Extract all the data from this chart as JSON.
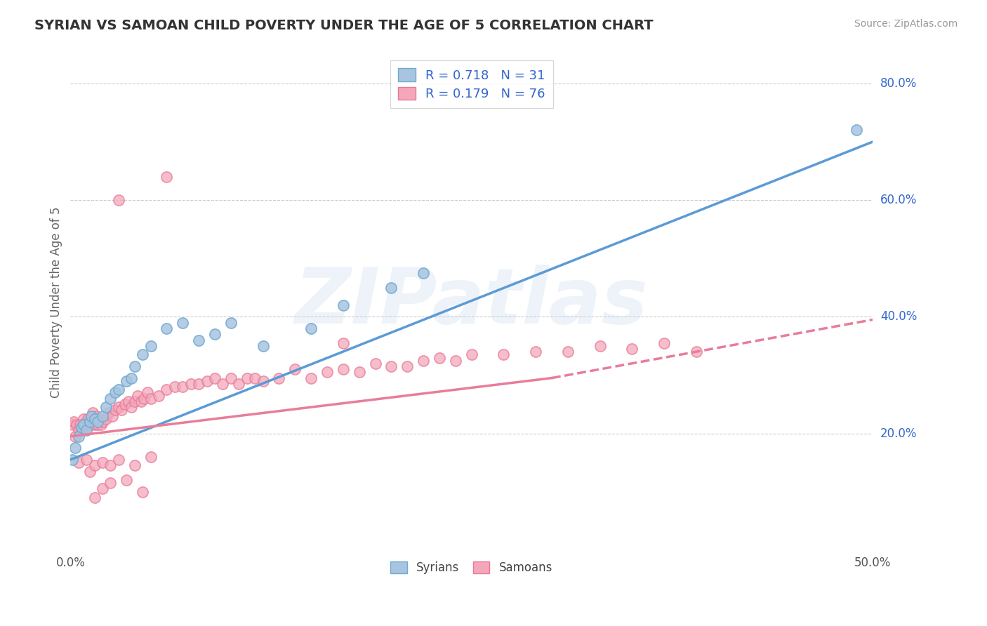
{
  "title": "SYRIAN VS SAMOAN CHILD POVERTY UNDER THE AGE OF 5 CORRELATION CHART",
  "source": "Source: ZipAtlas.com",
  "ylabel": "Child Poverty Under the Age of 5",
  "xlim": [
    0.0,
    0.5
  ],
  "ylim": [
    0.0,
    0.85
  ],
  "y_ticks": [
    0.2,
    0.4,
    0.6,
    0.8
  ],
  "y_tick_labels": [
    "20.0%",
    "40.0%",
    "60.0%",
    "80.0%"
  ],
  "x_tick_labels_ends": [
    "0.0%",
    "50.0%"
  ],
  "syrian_color": "#a8c4e0",
  "syrian_edge_color": "#6fabd0",
  "samoan_color": "#f4a7b9",
  "samoan_edge_color": "#e8799a",
  "syrian_line_color": "#5b9bd5",
  "samoan_line_color": "#e87d9a",
  "R_syrian": 0.718,
  "N_syrian": 31,
  "R_samoan": 0.179,
  "N_samoan": 76,
  "legend_labels": [
    "Syrians",
    "Samoans"
  ],
  "watermark": "ZIPatlas",
  "background_color": "#ffffff",
  "grid_color": "#cccccc",
  "title_color": "#333333",
  "axis_label_color": "#666666",
  "tick_color": "#3366cc",
  "legend_R_color": "#3366cc",
  "syrian_line": {
    "x0": 0.0,
    "x1": 0.5,
    "y0": 0.155,
    "y1": 0.7
  },
  "samoan_line_solid": {
    "x0": 0.0,
    "x1": 0.3,
    "y0": 0.195,
    "y1": 0.295
  },
  "samoan_line_dashed": {
    "x0": 0.3,
    "x1": 0.5,
    "y0": 0.295,
    "y1": 0.395
  },
  "syrian_x": [
    0.001,
    0.003,
    0.005,
    0.007,
    0.008,
    0.01,
    0.012,
    0.013,
    0.015,
    0.017,
    0.02,
    0.022,
    0.025,
    0.028,
    0.03,
    0.035,
    0.038,
    0.04,
    0.045,
    0.05,
    0.06,
    0.07,
    0.08,
    0.09,
    0.1,
    0.12,
    0.15,
    0.17,
    0.2,
    0.22,
    0.49
  ],
  "syrian_y": [
    0.155,
    0.175,
    0.195,
    0.21,
    0.215,
    0.205,
    0.22,
    0.23,
    0.225,
    0.22,
    0.23,
    0.245,
    0.26,
    0.27,
    0.275,
    0.29,
    0.295,
    0.315,
    0.335,
    0.35,
    0.38,
    0.39,
    0.36,
    0.37,
    0.39,
    0.35,
    0.38,
    0.42,
    0.45,
    0.475,
    0.72
  ],
  "samoan_x": [
    0.001,
    0.002,
    0.003,
    0.004,
    0.005,
    0.006,
    0.007,
    0.008,
    0.009,
    0.01,
    0.011,
    0.012,
    0.013,
    0.014,
    0.015,
    0.016,
    0.017,
    0.018,
    0.019,
    0.02,
    0.022,
    0.024,
    0.026,
    0.028,
    0.03,
    0.032,
    0.034,
    0.036,
    0.038,
    0.04,
    0.042,
    0.044,
    0.046,
    0.048,
    0.05,
    0.055,
    0.06,
    0.065,
    0.07,
    0.075,
    0.08,
    0.085,
    0.09,
    0.095,
    0.1,
    0.105,
    0.11,
    0.115,
    0.12,
    0.13,
    0.14,
    0.15,
    0.16,
    0.17,
    0.18,
    0.19,
    0.2,
    0.21,
    0.22,
    0.23,
    0.24,
    0.25,
    0.27,
    0.29,
    0.31,
    0.33,
    0.35,
    0.37,
    0.39,
    0.17,
    0.012,
    0.015,
    0.02,
    0.025,
    0.035,
    0.045
  ],
  "samoan_y": [
    0.215,
    0.22,
    0.195,
    0.215,
    0.205,
    0.215,
    0.205,
    0.225,
    0.21,
    0.22,
    0.225,
    0.22,
    0.215,
    0.235,
    0.215,
    0.23,
    0.215,
    0.225,
    0.215,
    0.22,
    0.225,
    0.235,
    0.23,
    0.24,
    0.245,
    0.24,
    0.25,
    0.255,
    0.245,
    0.255,
    0.265,
    0.255,
    0.26,
    0.27,
    0.26,
    0.265,
    0.275,
    0.28,
    0.28,
    0.285,
    0.285,
    0.29,
    0.295,
    0.285,
    0.295,
    0.285,
    0.295,
    0.295,
    0.29,
    0.295,
    0.31,
    0.295,
    0.305,
    0.31,
    0.305,
    0.32,
    0.315,
    0.315,
    0.325,
    0.33,
    0.325,
    0.335,
    0.335,
    0.34,
    0.34,
    0.35,
    0.345,
    0.355,
    0.34,
    0.355,
    0.135,
    0.09,
    0.105,
    0.115,
    0.12,
    0.1
  ],
  "samoan_outliers_x": [
    0.03,
    0.06,
    0.005,
    0.01,
    0.015,
    0.02,
    0.025,
    0.03,
    0.04,
    0.05
  ],
  "samoan_outliers_y": [
    0.6,
    0.64,
    0.15,
    0.155,
    0.145,
    0.15,
    0.145,
    0.155,
    0.145,
    0.16
  ]
}
